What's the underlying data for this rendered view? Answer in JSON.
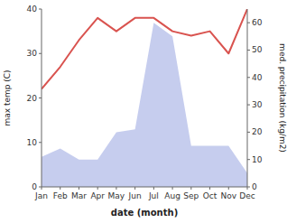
{
  "chart_data": {
    "type": "line",
    "xlabel": "date (month)",
    "ylabel": "max temp (C)",
    "y2label": "med. precipitation (kg/m2)",
    "categories": [
      "Jan",
      "Feb",
      "Mar",
      "Apr",
      "May",
      "Jun",
      "Jul",
      "Aug",
      "Sep",
      "Oct",
      "Nov",
      "Dec"
    ],
    "series": [
      {
        "type": "line",
        "color": "#d9534f",
        "values": [
          22,
          27,
          33,
          38,
          35,
          38,
          38,
          35,
          34,
          35,
          30,
          40
        ]
      },
      {
        "type": "area",
        "color": "#b3bce8",
        "axis": "y2",
        "values": [
          11,
          14,
          10,
          10,
          20,
          21,
          60,
          55,
          15,
          15,
          15,
          5
        ]
      }
    ],
    "ylim": [
      0,
      40
    ],
    "yticks": [
      0,
      10,
      20,
      30,
      40
    ],
    "y2lim": [
      0,
      65
    ],
    "y2ticks": [
      0,
      10,
      20,
      30,
      40,
      50,
      60
    ],
    "grid": false
  }
}
